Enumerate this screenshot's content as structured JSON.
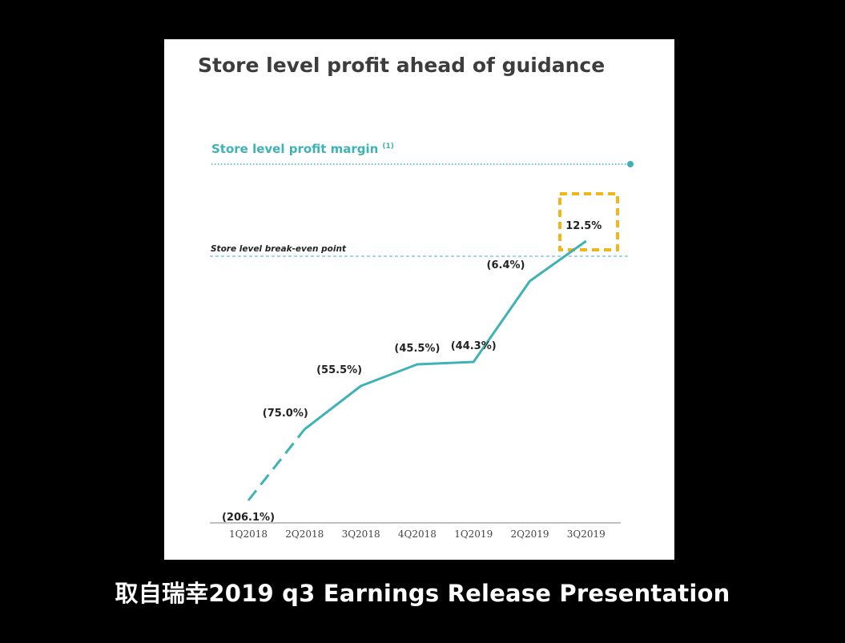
{
  "chart_data": {
    "type": "line",
    "title": "Store level profit ahead of guidance",
    "subtitle": "Store level profit margin",
    "subtitle_footnote": "(1)",
    "reference_line_label": "Store level break-even point",
    "reference_line_value": 0,
    "categories": [
      "1Q2018",
      "2Q2018",
      "3Q2018",
      "4Q2018",
      "1Q2019",
      "2Q2019",
      "3Q2019"
    ],
    "values": [
      -206.1,
      -75.0,
      -55.5,
      -45.5,
      -44.3,
      -6.4,
      12.5
    ],
    "data_labels": [
      "(206.1%)",
      "(75.0%)",
      "(55.5%)",
      "(45.5%)",
      "(44.3%)",
      "(6.4%)",
      "12.5%"
    ],
    "dashed_segment": [
      "1Q2018",
      "2Q2018"
    ],
    "highlighted_point": "3Q2019",
    "grid": false,
    "legend": "none"
  },
  "colors": {
    "line": "#3fb2b5",
    "title": "#3d3d3d",
    "subtitle": "#3fb2b5",
    "highlight": "#f2b619",
    "axis": "#999999",
    "slide_background": "#ffffff",
    "page_background": "#000000",
    "caption": "#ffffff"
  },
  "caption": "取自瑞幸2019 q3 Earnings Release Presentation"
}
